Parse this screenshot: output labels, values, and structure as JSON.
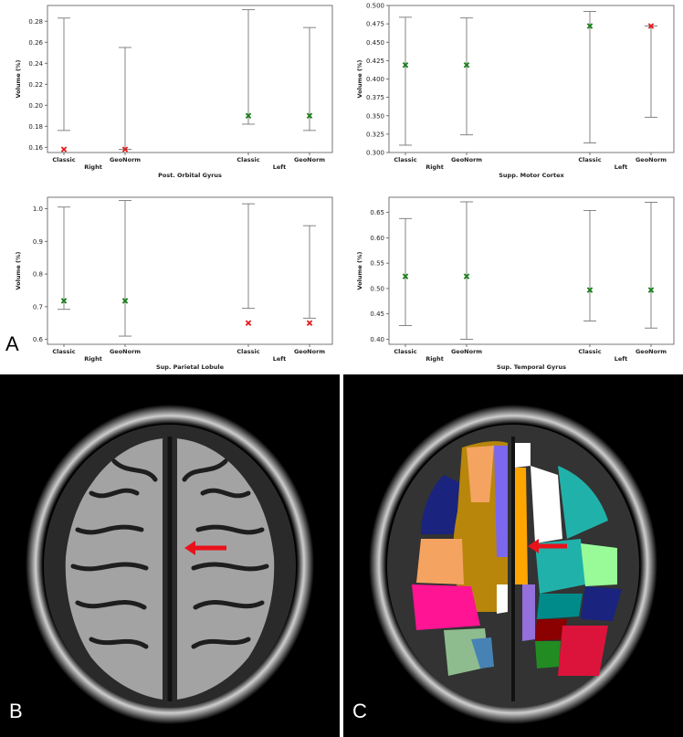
{
  "figure": {
    "panel_labels": {
      "a": "A",
      "b": "B",
      "c": "C"
    }
  },
  "chart_data": [
    {
      "type": "scatter",
      "id": "chart1",
      "title": "Post. Orbital Gyrus",
      "ylabel": "Volume (%)",
      "categories": [
        "Classic",
        "GeoNorm",
        "Classic",
        "GeoNorm"
      ],
      "groups": [
        "Right",
        "Left"
      ],
      "ylim": [
        0.155,
        0.295
      ],
      "yticks": [
        "0.16",
        "0.18",
        "0.20",
        "0.22",
        "0.24",
        "0.26",
        "0.28"
      ],
      "ytick_values": [
        0.16,
        0.18,
        0.2,
        0.22,
        0.24,
        0.26,
        0.28
      ],
      "points": [
        {
          "value": 0.158,
          "low": 0.176,
          "high": 0.283,
          "color": "#e41a1c"
        },
        {
          "value": 0.158,
          "low": 0.158,
          "high": 0.255,
          "color": "#e41a1c"
        },
        {
          "value": 0.19,
          "low": 0.182,
          "high": 0.291,
          "color": "#1a7f1a"
        },
        {
          "value": 0.19,
          "low": 0.176,
          "high": 0.274,
          "color": "#1a7f1a"
        }
      ]
    },
    {
      "type": "scatter",
      "id": "chart2",
      "title": "Supp. Motor Cortex",
      "ylabel": "Volume (%)",
      "categories": [
        "Classic",
        "GeoNorm",
        "Classic",
        "GeoNorm"
      ],
      "groups": [
        "Right",
        "Left"
      ],
      "ylim": [
        0.3,
        0.5
      ],
      "yticks": [
        "0.300",
        "0.325",
        "0.350",
        "0.375",
        "0.400",
        "0.425",
        "0.450",
        "0.475",
        "0.500"
      ],
      "ytick_values": [
        0.3,
        0.325,
        0.35,
        0.375,
        0.4,
        0.425,
        0.45,
        0.475,
        0.5
      ],
      "points": [
        {
          "value": 0.419,
          "low": 0.31,
          "high": 0.484,
          "color": "#1a7f1a"
        },
        {
          "value": 0.419,
          "low": 0.324,
          "high": 0.483,
          "color": "#1a7f1a"
        },
        {
          "value": 0.472,
          "low": 0.313,
          "high": 0.492,
          "color": "#1a7f1a"
        },
        {
          "value": 0.472,
          "low": 0.348,
          "high": 0.472,
          "color": "#e41a1c"
        }
      ]
    },
    {
      "type": "scatter",
      "id": "chart3",
      "title": "Sup. Parietal Lobule",
      "ylabel": "Volume (%)",
      "categories": [
        "Classic",
        "GeoNorm",
        "Classic",
        "GeoNorm"
      ],
      "groups": [
        "Right",
        "Left"
      ],
      "ylim": [
        0.585,
        1.035
      ],
      "yticks": [
        "0.6",
        "0.7",
        "0.8",
        "0.9",
        "1.0"
      ],
      "ytick_values": [
        0.6,
        0.7,
        0.8,
        0.9,
        1.0
      ],
      "points": [
        {
          "value": 0.718,
          "low": 0.692,
          "high": 1.005,
          "color": "#1a7f1a"
        },
        {
          "value": 0.718,
          "low": 0.61,
          "high": 1.025,
          "color": "#1a7f1a"
        },
        {
          "value": 0.65,
          "low": 0.695,
          "high": 1.015,
          "color": "#e41a1c"
        },
        {
          "value": 0.65,
          "low": 0.665,
          "high": 0.948,
          "color": "#e41a1c"
        }
      ]
    },
    {
      "type": "scatter",
      "id": "chart4",
      "title": "Sup. Temporal Gyrus",
      "ylabel": "Volume (%)",
      "categories": [
        "Classic",
        "GeoNorm",
        "Classic",
        "GeoNorm"
      ],
      "groups": [
        "Right",
        "Left"
      ],
      "ylim": [
        0.39,
        0.68
      ],
      "yticks": [
        "0.40",
        "0.45",
        "0.50",
        "0.55",
        "0.60",
        "0.65"
      ],
      "ytick_values": [
        0.4,
        0.45,
        0.5,
        0.55,
        0.6,
        0.65
      ],
      "points": [
        {
          "value": 0.524,
          "low": 0.427,
          "high": 0.638,
          "color": "#1a7f1a"
        },
        {
          "value": 0.524,
          "low": 0.4,
          "high": 0.671,
          "color": "#1a7f1a"
        },
        {
          "value": 0.497,
          "low": 0.436,
          "high": 0.654,
          "color": "#1a7f1a"
        },
        {
          "value": 0.497,
          "low": 0.422,
          "high": 0.67,
          "color": "#1a7f1a"
        }
      ]
    }
  ],
  "colors": {
    "brain_grey": "#9a9a9a",
    "arrow": "#e8121b"
  }
}
